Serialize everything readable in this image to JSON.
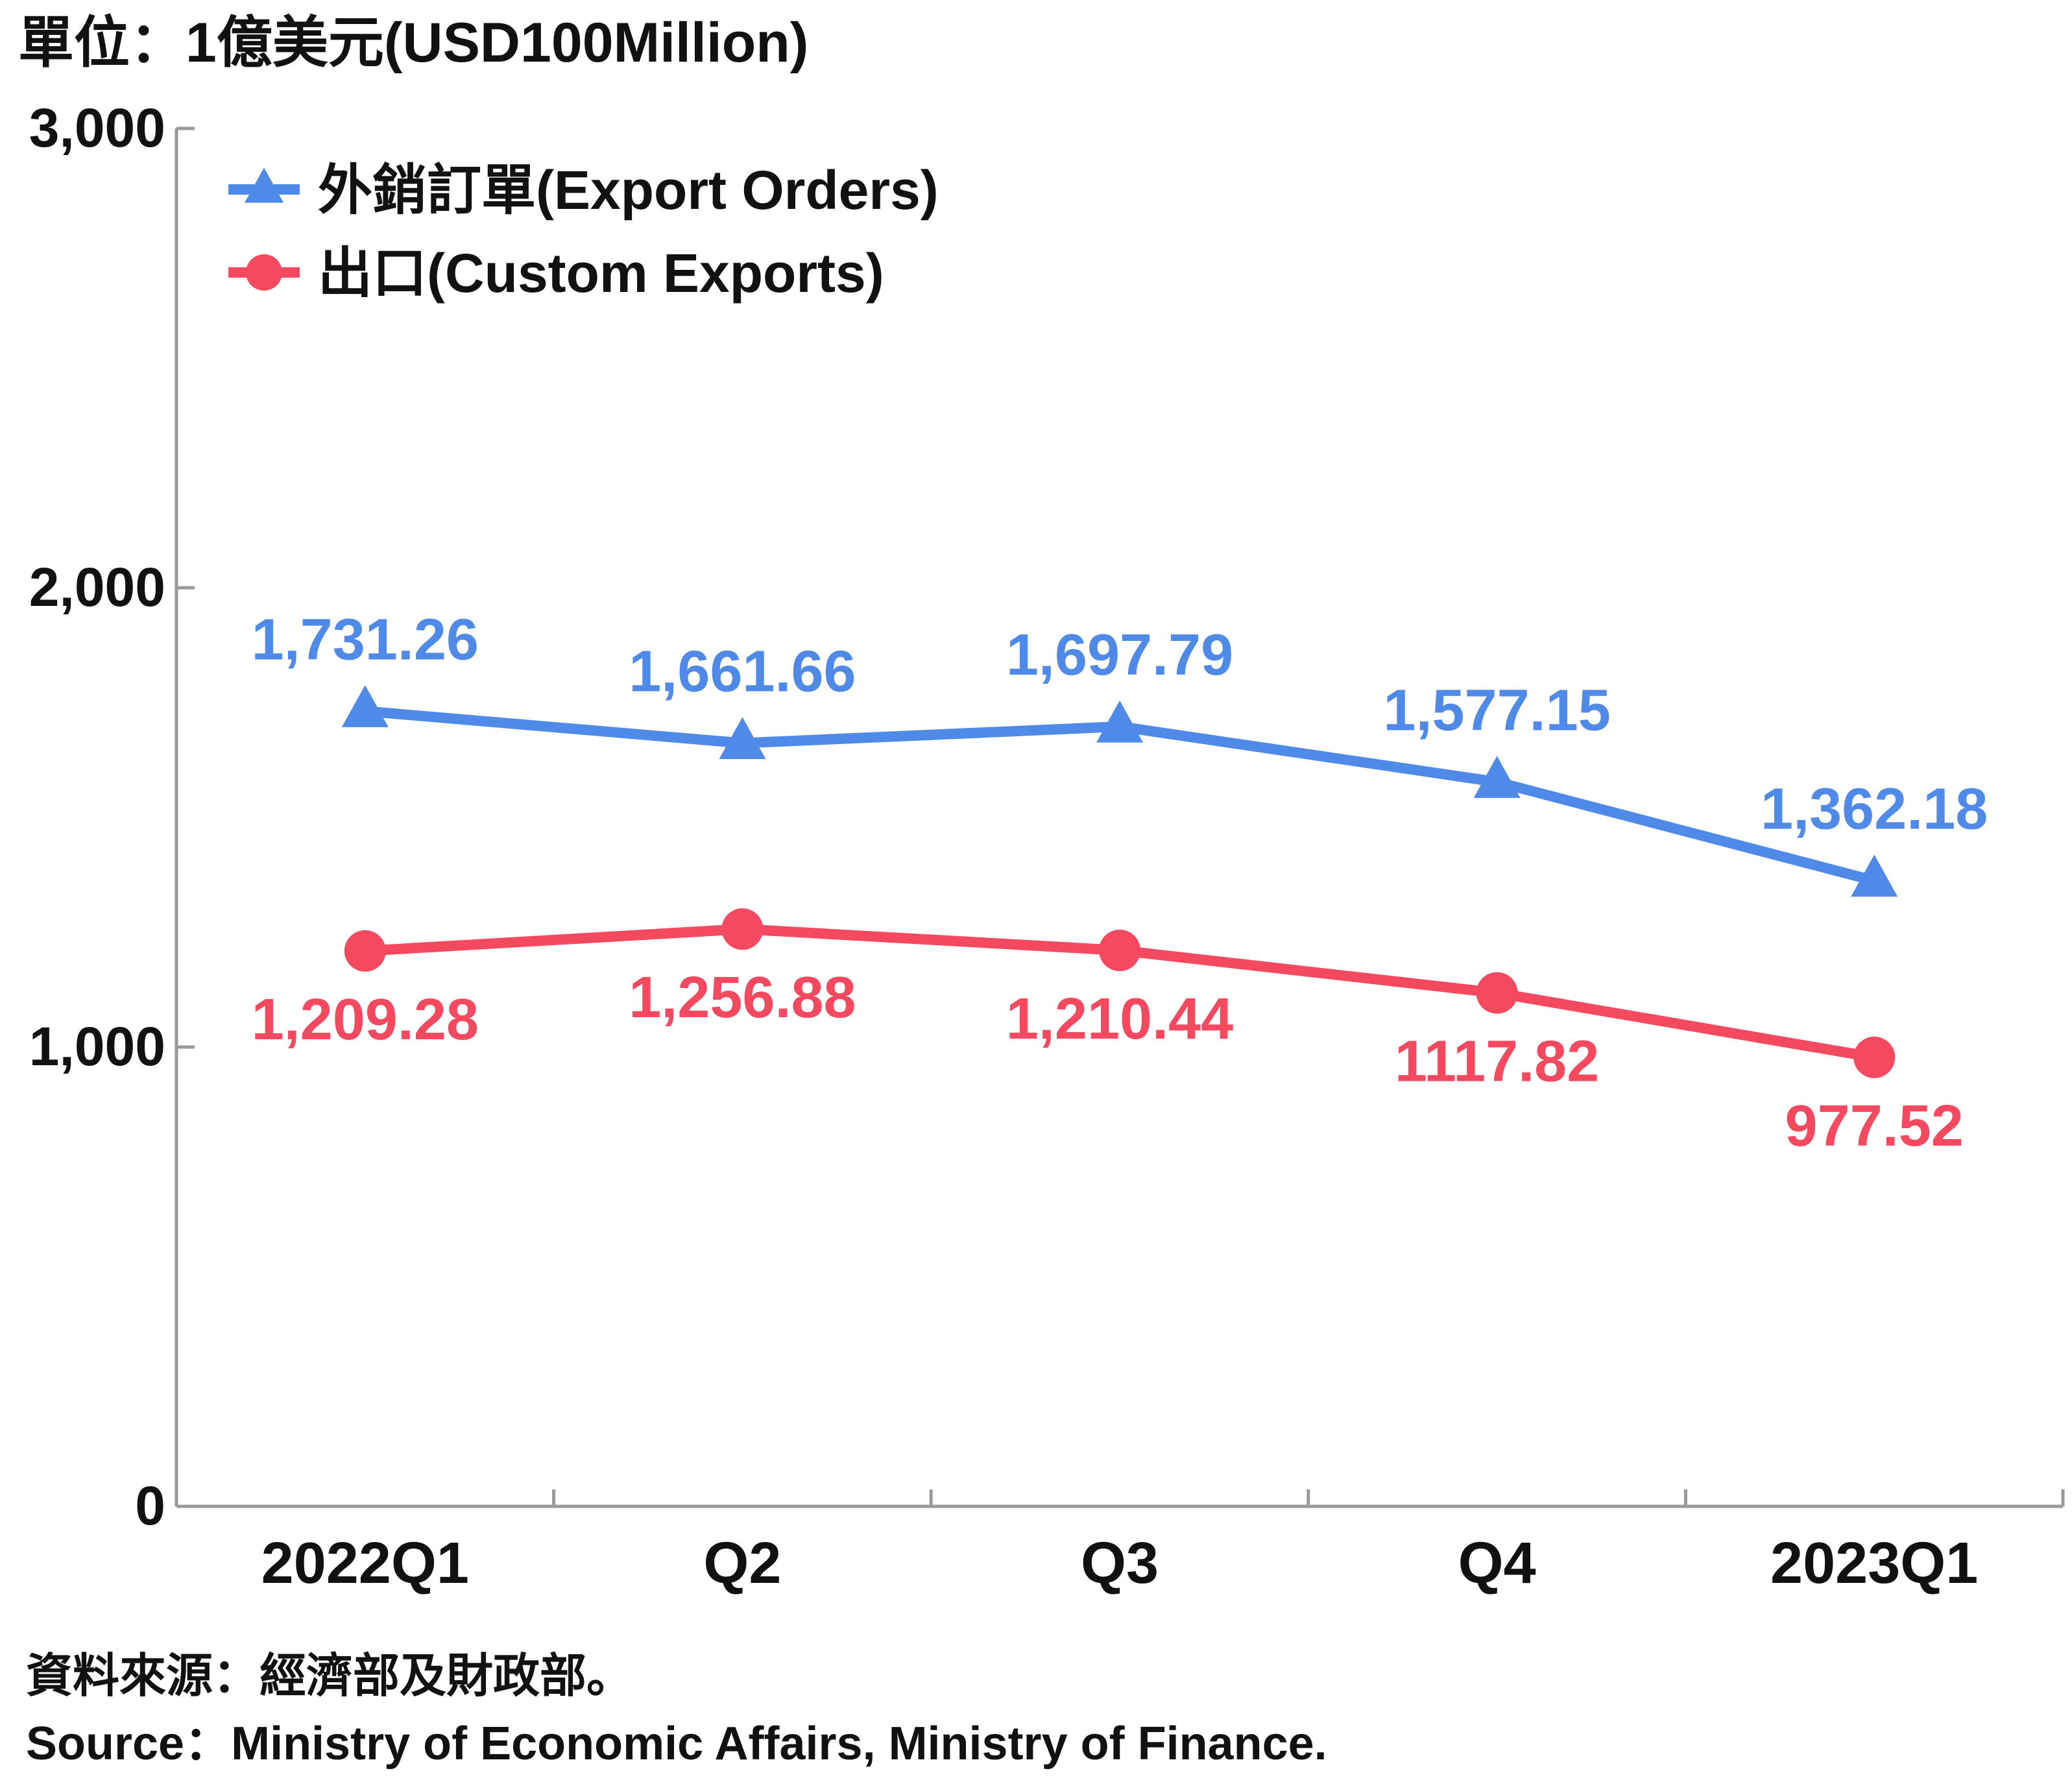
{
  "chart_data": {
    "type": "line",
    "unit_label": "單位：1億美元(USD100Million)",
    "categories": [
      "2022Q1",
      "Q2",
      "Q3",
      "Q4",
      "2023Q1"
    ],
    "ylim": [
      0,
      3000
    ],
    "yticks": [
      0,
      1000,
      2000,
      3000
    ],
    "ytick_labels": [
      "0",
      "1,000",
      "2,000",
      "3,000"
    ],
    "grid": false,
    "legend_position": "top-left",
    "series": [
      {
        "name": "外銷訂單(Export Orders)",
        "color": "#4f8ae8",
        "marker": "triangle",
        "values": [
          1731.26,
          1661.66,
          1697.79,
          1577.15,
          1362.18
        ],
        "labels": [
          "1,731.26",
          "1,661.66",
          "1,697.79",
          "1,577.15",
          "1,362.18"
        ],
        "label_position": "above"
      },
      {
        "name": "出口(Custom Exports)",
        "color": "#f5495f",
        "marker": "circle",
        "values": [
          1209.28,
          1256.88,
          1210.44,
          1117.82,
          977.52
        ],
        "labels": [
          "1,209.28",
          "1,256.88",
          "1,210.44",
          "1117.82",
          "977.52"
        ],
        "label_position": "below"
      }
    ]
  },
  "source": {
    "zh": "資料來源：經濟部及財政部。",
    "en": "Source：Ministry of Economic Affairs, Ministry of Finance."
  }
}
